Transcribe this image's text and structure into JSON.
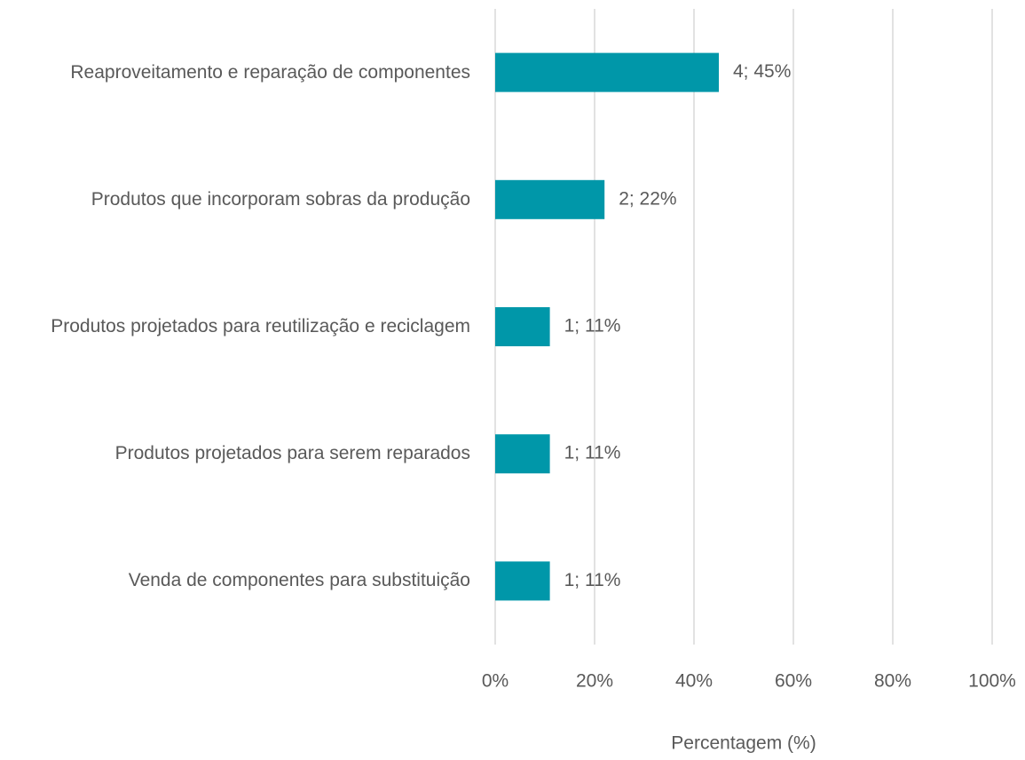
{
  "chart_data": {
    "type": "barh",
    "categories": [
      "Reaproveitamento e reparação de componentes",
      "Produtos que incorporam sobras da produção",
      "Produtos projetados para reutilização e reciclagem",
      "Produtos projetados para serem reparados",
      "Venda de componentes para substituição"
    ],
    "values": [
      45,
      22,
      11,
      11,
      11
    ],
    "value_labels": [
      "4; 45%",
      "2; 22%",
      "1; 11%",
      "1; 11%",
      "1; 11%"
    ],
    "color": "#0097a9",
    "xlabel": "Percentagem (%)",
    "xlim": [
      0,
      100
    ],
    "xticks": [
      {
        "value": 0,
        "label": "0%"
      },
      {
        "value": 20,
        "label": "20%"
      },
      {
        "value": 40,
        "label": "40%"
      },
      {
        "value": 60,
        "label": "60%"
      },
      {
        "value": 80,
        "label": "80%"
      },
      {
        "value": 100,
        "label": "100%"
      }
    ],
    "grid": true
  }
}
